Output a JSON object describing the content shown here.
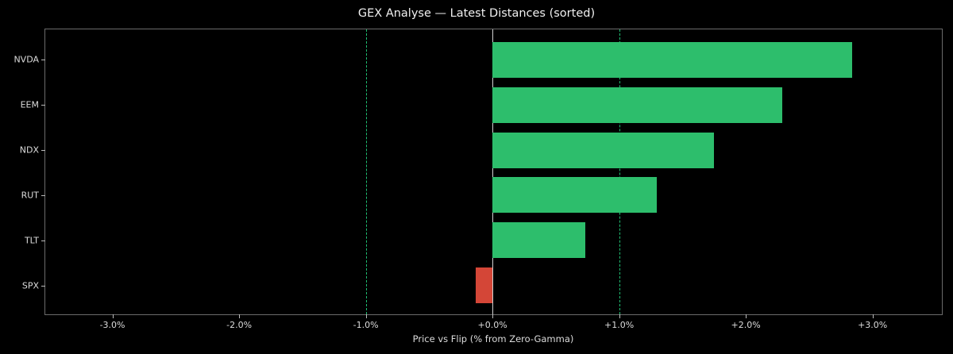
{
  "chart_data": {
    "type": "bar",
    "orientation": "horizontal",
    "title": "GEX Analyse — Latest Distances (sorted)",
    "xlabel": "Price vs Flip (% from Zero-Gamma)",
    "ylabel": "",
    "categories": [
      "NVDA",
      "EEM",
      "NDX",
      "RUT",
      "TLT",
      "SPX"
    ],
    "values": [
      2.84,
      2.29,
      1.75,
      1.3,
      0.73,
      -0.13
    ],
    "unit": "%",
    "xlim": [
      -3.53,
      3.56
    ],
    "xticks": [
      -3,
      -2,
      -1,
      0,
      1,
      2,
      3
    ],
    "xtick_labels": [
      "-3.0%",
      "-2.0%",
      "-1.0%",
      "+0.0%",
      "+1.0%",
      "+2.0%",
      "+3.0%"
    ],
    "reference_lines": [
      {
        "x": 0,
        "style": "solid",
        "color": "#cfcfcf"
      },
      {
        "x": -1,
        "style": "dashed",
        "color": "#1fbf73"
      },
      {
        "x": 1,
        "style": "dashed",
        "color": "#1fbf73"
      }
    ],
    "colors": {
      "positive": "#2dbe6c",
      "negative": "#d44637",
      "background": "#000000"
    },
    "grid": false,
    "legend": null
  }
}
